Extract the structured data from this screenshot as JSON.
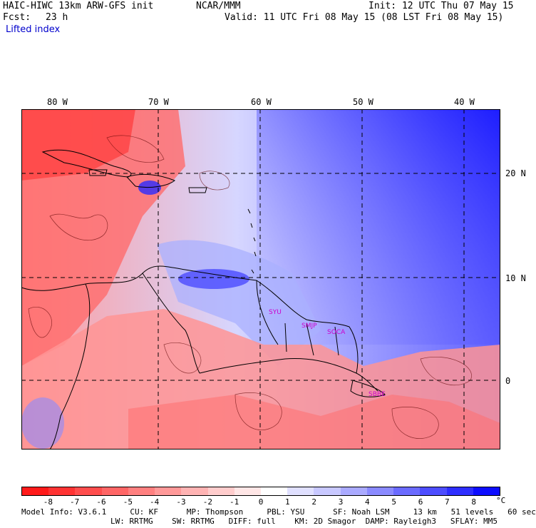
{
  "header": {
    "model": "HAIC-HIWC 13km ARW-GFS init",
    "org": "NCAR/MMM",
    "init": "Init: 12 UTC Thu 07 May 15",
    "fcst_label": "Fcst:",
    "fcst_value": "23 h",
    "valid": "Valid: 11 UTC Fri 08 May 15 (08 LST Fri 08 May 15)",
    "field": "Lifted index"
  },
  "map": {
    "lon_labels": [
      "80 W",
      "70 W",
      "60 W",
      "50 W",
      "40 W"
    ],
    "lat_labels": [
      "20 N",
      "10 N",
      "0"
    ],
    "station_labels": [
      "SYU",
      "SMJP",
      "SOCA",
      "SBBE"
    ]
  },
  "colorbar": {
    "labels": [
      "-8",
      "-7",
      "-6",
      "-5",
      "-4",
      "-3",
      "-2",
      "-1",
      "0",
      "1",
      "2",
      "3",
      "4",
      "5",
      "6",
      "7",
      "8"
    ],
    "unit": "°C",
    "colors": [
      "#ff1a1a",
      "#ff3333",
      "#ff4d4d",
      "#ff6666",
      "#ff8080",
      "#ff9999",
      "#ffb3b3",
      "#ffcccc",
      "#ffe6e6",
      "#ffffff",
      "#e0e0ff",
      "#c8c8ff",
      "#aaaaff",
      "#8a8aff",
      "#6b6bff",
      "#4d4dff",
      "#2e2eff",
      "#0d0dff"
    ]
  },
  "footer": {
    "line1": "Model Info: V3.6.1     CU: KF      MP: Thompson     PBL: YSU      SF: Noah LSM     13 km   51 levels   60 sec",
    "line2": "LW: RRTMG    SW: RRTMG   DIFF: full    KM: 2D Smagor  DAMP: Rayleigh3   SFLAY: MM5"
  }
}
